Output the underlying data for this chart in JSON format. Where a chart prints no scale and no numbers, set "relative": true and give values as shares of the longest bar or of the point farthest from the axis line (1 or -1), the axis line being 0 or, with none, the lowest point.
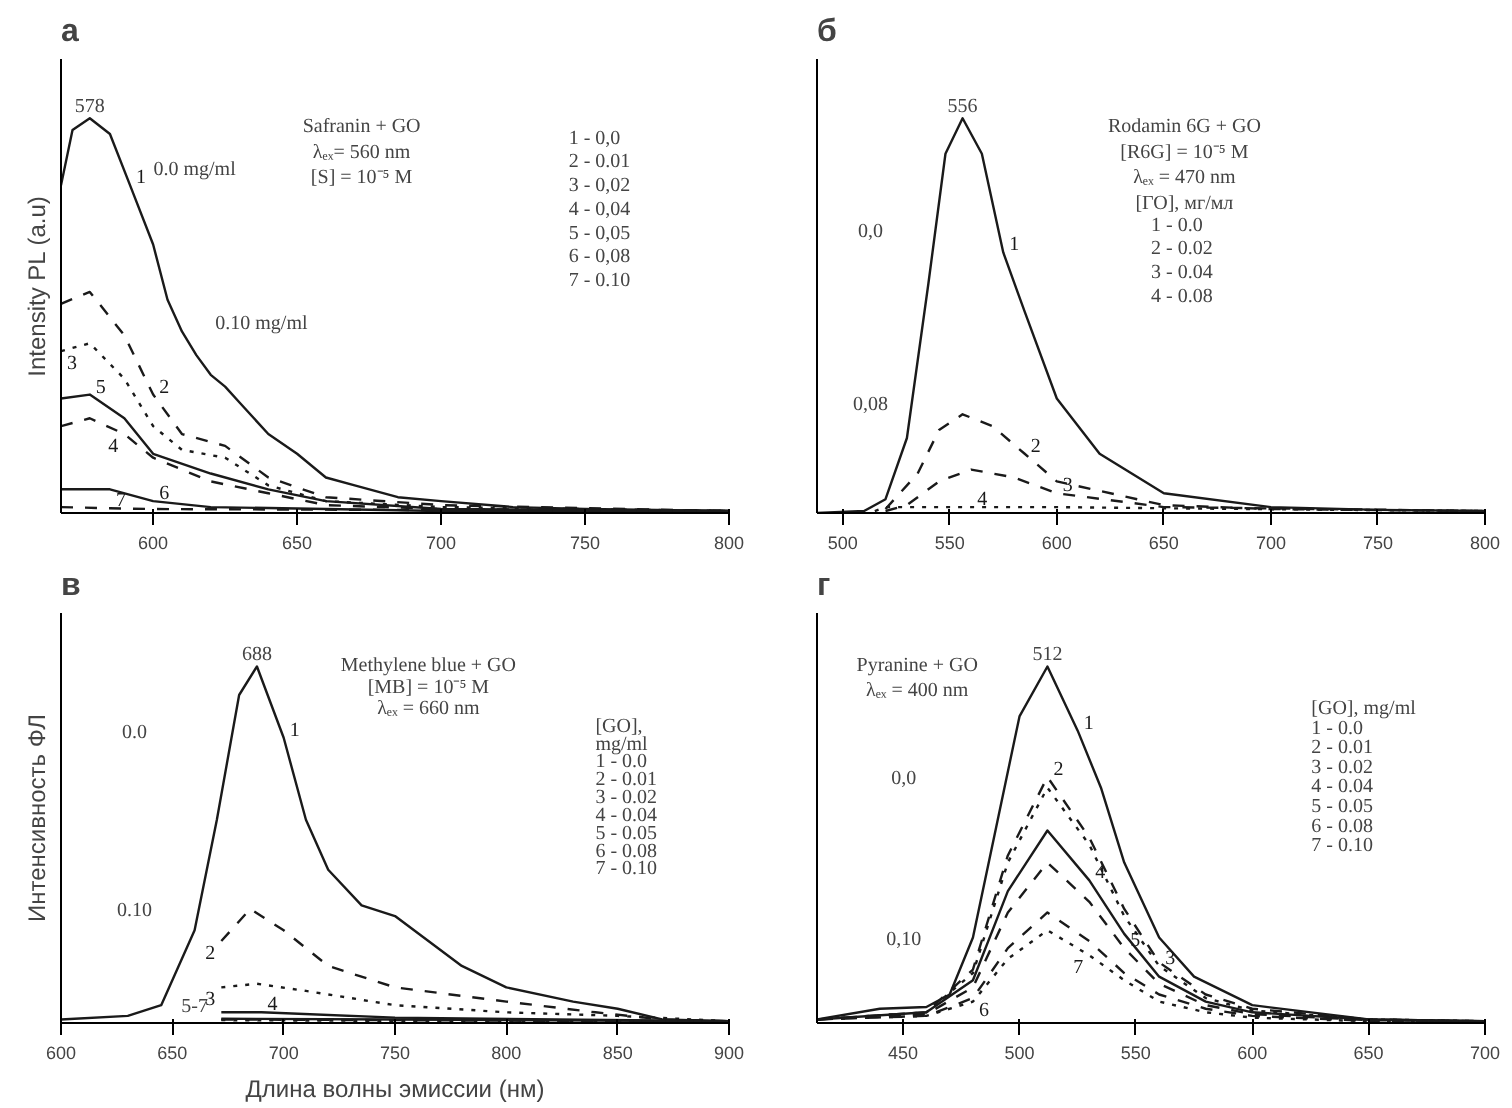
{
  "chart_data": [
    {
      "type": "line",
      "title": "а",
      "ylabel": "Intensity PL (a.u)",
      "relative": true,
      "tick_labels": "x",
      "xlim": [
        568,
        800
      ],
      "xticks": [
        600,
        650,
        700,
        750,
        800
      ],
      "series": [
        {
          "name": "1",
          "color": "#1a1a1a",
          "line_style": "solid",
          "x": [
            568,
            572,
            578,
            585,
            592,
            600,
            605,
            610,
            615,
            620,
            625,
            630,
            640,
            650,
            660,
            670,
            685,
            700,
            725,
            750,
            800
          ],
          "values": [
            0.83,
            0.97,
            1.0,
            0.96,
            0.83,
            0.68,
            0.54,
            0.46,
            0.4,
            0.35,
            0.32,
            0.28,
            0.2,
            0.15,
            0.09,
            0.07,
            0.04,
            0.03,
            0.015,
            0.01,
            0.005
          ]
        },
        {
          "name": "2",
          "color": "#1a1a1a",
          "line_style": "dashed",
          "x": [
            568,
            578,
            590,
            600,
            610,
            625,
            640,
            660,
            700,
            800
          ],
          "values": [
            0.53,
            0.56,
            0.45,
            0.3,
            0.2,
            0.17,
            0.09,
            0.04,
            0.02,
            0.005
          ]
        },
        {
          "name": "3",
          "color": "#1a1a1a",
          "line_style": "dotted",
          "x": [
            568,
            578,
            590,
            600,
            610,
            625,
            640,
            660,
            700,
            800
          ],
          "values": [
            0.41,
            0.43,
            0.34,
            0.22,
            0.16,
            0.14,
            0.07,
            0.03,
            0.015,
            0.005
          ]
        },
        {
          "name": "4",
          "color": "#1a1a1a",
          "line_style": "dashed",
          "x": [
            568,
            578,
            590,
            600,
            620,
            640,
            660,
            700,
            800
          ],
          "values": [
            0.22,
            0.24,
            0.2,
            0.14,
            0.08,
            0.05,
            0.02,
            0.01,
            0.005
          ]
        },
        {
          "name": "5",
          "color": "#1a1a1a",
          "line_style": "solid",
          "x": [
            568,
            578,
            590,
            600,
            620,
            640,
            660,
            700,
            800
          ],
          "values": [
            0.29,
            0.3,
            0.24,
            0.15,
            0.1,
            0.06,
            0.03,
            0.01,
            0.005
          ]
        },
        {
          "name": "6",
          "color": "#1a1a1a",
          "line_style": "solid",
          "x": [
            568,
            578,
            585,
            600,
            620,
            700,
            800
          ],
          "values": [
            0.06,
            0.06,
            0.06,
            0.03,
            0.015,
            0.005,
            0.005
          ]
        },
        {
          "name": "7",
          "color": "#1a1a1a",
          "line_style": "dashed",
          "x": [
            568,
            585,
            600,
            800
          ],
          "values": [
            0.015,
            0.012,
            0.01,
            0.005
          ]
        }
      ],
      "annotations": [
        {
          "text": "578",
          "x": 578,
          "y": 1.0
        },
        "Safranin + GO",
        "λₑₓ= 560 nm",
        "[S] = 10⁻⁵ M",
        "0.0 mg/ml",
        "0.10 mg/ml",
        "1 - 0,0",
        "2 - 0.01",
        "3 - 0,02",
        "4 - 0,04",
        "5 - 0,05",
        "6 - 0,08",
        "7 - 0.10"
      ]
    },
    {
      "type": "line",
      "title": "б",
      "relative": true,
      "tick_labels": "x",
      "xlim": [
        488,
        800
      ],
      "xticks": [
        500,
        550,
        600,
        650,
        700,
        750,
        800
      ],
      "series": [
        {
          "name": "1",
          "color": "#1a1a1a",
          "line_style": "solid",
          "x": [
            488,
            510,
            520,
            530,
            540,
            548,
            556,
            565,
            575,
            585,
            600,
            620,
            650,
            700,
            750,
            800
          ],
          "values": [
            0.0,
            0.005,
            0.035,
            0.19,
            0.58,
            0.91,
            1.0,
            0.91,
            0.66,
            0.51,
            0.29,
            0.15,
            0.05,
            0.015,
            0.008,
            0.005
          ]
        },
        {
          "name": "2",
          "color": "#1a1a1a",
          "line_style": "dashed",
          "x": [
            520,
            535,
            545,
            556,
            570,
            585,
            600,
            650,
            700,
            800
          ],
          "values": [
            0.01,
            0.1,
            0.21,
            0.25,
            0.22,
            0.15,
            0.08,
            0.02,
            0.01,
            0.005
          ]
        },
        {
          "name": "3",
          "color": "#1a1a1a",
          "line_style": "dashed",
          "x": [
            520,
            530,
            545,
            560,
            580,
            600,
            650,
            800
          ],
          "values": [
            0.005,
            0.02,
            0.08,
            0.11,
            0.09,
            0.05,
            0.015,
            0.005
          ]
        },
        {
          "name": "4",
          "color": "#1a1a1a",
          "line_style": "dotted",
          "x": [
            515,
            520,
            560,
            600,
            650,
            800
          ],
          "values": [
            0.005,
            0.015,
            0.015,
            0.015,
            0.012,
            0.005
          ]
        }
      ],
      "annotations": [
        {
          "text": "556",
          "x": 556,
          "y": 1.0
        },
        "Rodamin 6G + GO",
        "[R6G] = 10⁻⁵ M",
        "λₑₓ = 470 nm",
        "[ГО], мг/мл",
        "1 - 0.0",
        "2 - 0.02",
        "3 - 0.04",
        "4 - 0.08",
        "0,0",
        "0,08"
      ]
    },
    {
      "type": "line",
      "title": "в",
      "ylabel": "Интенсивность ФЛ",
      "xlabel": "Длина волны эмиссии (нм)",
      "relative": true,
      "tick_labels": "x",
      "xlim": [
        600,
        900
      ],
      "xticks": [
        600,
        650,
        700,
        750,
        800,
        850,
        900
      ],
      "series": [
        {
          "name": "1",
          "color": "#1a1a1a",
          "line_style": "solid",
          "x": [
            600,
            630,
            645,
            660,
            670,
            680,
            688,
            700,
            710,
            720,
            735,
            750,
            765,
            780,
            800,
            830,
            850,
            870,
            900
          ],
          "values": [
            0.01,
            0.02,
            0.05,
            0.26,
            0.57,
            0.92,
            1.0,
            0.8,
            0.57,
            0.43,
            0.33,
            0.3,
            0.23,
            0.16,
            0.1,
            0.06,
            0.04,
            0.01,
            0.005
          ]
        },
        {
          "name": "2",
          "color": "#1a1a1a",
          "line_style": "dashed",
          "x": [
            672,
            685,
            700,
            720,
            750,
            800,
            840,
            870,
            900
          ],
          "values": [
            0.23,
            0.32,
            0.26,
            0.16,
            0.1,
            0.06,
            0.03,
            0.01,
            0.005
          ]
        },
        {
          "name": "3",
          "color": "#1a1a1a",
          "line_style": "dotted",
          "x": [
            672,
            688,
            710,
            750,
            800,
            850,
            900
          ],
          "values": [
            0.1,
            0.11,
            0.09,
            0.05,
            0.03,
            0.02,
            0.005
          ]
        },
        {
          "name": "4",
          "color": "#1a1a1a",
          "line_style": "solid",
          "x": [
            672,
            690,
            750,
            900
          ],
          "values": [
            0.03,
            0.03,
            0.015,
            0.005
          ]
        },
        {
          "color": "#1a1a1a",
          "line_style": "solid",
          "x": [
            672,
            750,
            900
          ],
          "values": [
            0.012,
            0.01,
            0.005
          ]
        },
        {
          "color": "#1a1a1a",
          "line_style": "dashed",
          "x": [
            672,
            750,
            900
          ],
          "values": [
            0.01,
            0.008,
            0.004
          ]
        },
        {
          "color": "#1a1a1a",
          "line_style": "dotted",
          "x": [
            672,
            750,
            900
          ],
          "values": [
            0.008,
            0.006,
            0.003
          ]
        }
      ],
      "annotations": [
        {
          "text": "688",
          "x": 688,
          "y": 1.0
        },
        "Methylene blue + GO",
        "[MB] = 10⁻⁵ M",
        "λₑₓ = 660 nm",
        "[GO],",
        "mg/ml",
        "1 - 0.0",
        "2 - 0.01",
        "3 - 0.02",
        "4 - 0.04",
        "5 - 0.05",
        "6 - 0.08",
        "7 - 0.10",
        "0.0",
        "0.10",
        "5-7"
      ]
    },
    {
      "type": "line",
      "title": "г",
      "relative": true,
      "tick_labels": "x",
      "xlim": [
        413,
        700
      ],
      "xticks": [
        450,
        500,
        550,
        600,
        650,
        700
      ],
      "series": [
        {
          "name": "1",
          "color": "#1a1a1a",
          "line_style": "solid",
          "x": [
            413,
            440,
            460,
            470,
            480,
            490,
            500,
            512,
            525,
            535,
            545,
            560,
            575,
            600,
            650,
            700
          ],
          "values": [
            0.01,
            0.04,
            0.045,
            0.08,
            0.24,
            0.55,
            0.86,
            1.0,
            0.82,
            0.66,
            0.45,
            0.24,
            0.13,
            0.05,
            0.01,
            0.005
          ]
        },
        {
          "name": "2",
          "color": "#1a1a1a",
          "line_style": "dashed",
          "x": [
            413,
            460,
            480,
            495,
            512,
            530,
            545,
            560,
            580,
            600,
            650,
            700
          ],
          "values": [
            0.01,
            0.03,
            0.15,
            0.47,
            0.69,
            0.52,
            0.32,
            0.17,
            0.08,
            0.04,
            0.01,
            0.005
          ]
        },
        {
          "name": "3",
          "color": "#1a1a1a",
          "line_style": "dotted",
          "x": [
            413,
            460,
            480,
            495,
            512,
            530,
            545,
            560,
            580,
            600,
            650,
            700
          ],
          "values": [
            0.01,
            0.03,
            0.14,
            0.45,
            0.66,
            0.5,
            0.3,
            0.16,
            0.07,
            0.035,
            0.01,
            0.005
          ]
        },
        {
          "name": "4",
          "color": "#1a1a1a",
          "line_style": "solid",
          "x": [
            413,
            460,
            480,
            495,
            512,
            530,
            545,
            560,
            580,
            600,
            650,
            700
          ],
          "values": [
            0.01,
            0.03,
            0.12,
            0.37,
            0.54,
            0.4,
            0.25,
            0.13,
            0.06,
            0.03,
            0.01,
            0.005
          ]
        },
        {
          "name": "5",
          "color": "#1a1a1a",
          "line_style": "dashed",
          "x": [
            413,
            460,
            480,
            495,
            512,
            530,
            545,
            560,
            580,
            600,
            650,
            700
          ],
          "values": [
            0.01,
            0.025,
            0.1,
            0.31,
            0.45,
            0.34,
            0.21,
            0.11,
            0.05,
            0.025,
            0.008,
            0.005
          ]
        },
        {
          "name": "6",
          "color": "#1a1a1a",
          "line_style": "dashed",
          "x": [
            413,
            460,
            480,
            495,
            512,
            530,
            545,
            560,
            580,
            600,
            650,
            700
          ],
          "values": [
            0.01,
            0.02,
            0.07,
            0.21,
            0.31,
            0.23,
            0.14,
            0.08,
            0.04,
            0.02,
            0.006,
            0.004
          ]
        },
        {
          "name": "7",
          "color": "#1a1a1a",
          "line_style": "dotted",
          "x": [
            413,
            460,
            480,
            495,
            512,
            530,
            545,
            560,
            580,
            600,
            650,
            700
          ],
          "values": [
            0.01,
            0.02,
            0.06,
            0.18,
            0.26,
            0.19,
            0.12,
            0.06,
            0.03,
            0.015,
            0.005,
            0.004
          ]
        }
      ],
      "annotations": [
        {
          "text": "512",
          "x": 512,
          "y": 1.0
        },
        "Pyranine + GO",
        "λₑₓ = 400 nm",
        "[GO], mg/ml",
        "1 - 0.0",
        "2 - 0.01",
        "3 - 0.02",
        "4 - 0.04",
        "5 - 0.05",
        "6 - 0.08",
        "7 - 0.10",
        "0,0",
        "0,10"
      ]
    }
  ]
}
